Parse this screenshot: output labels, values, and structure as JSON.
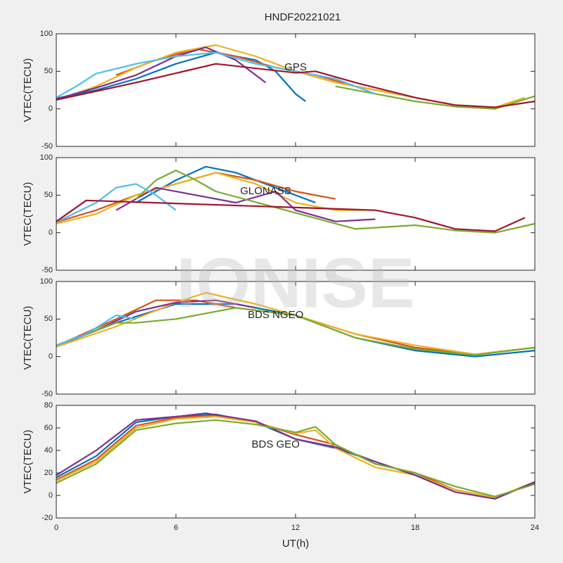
{
  "title": "HNDF20221021",
  "watermark": "IONISE",
  "xlabel": "UT(h)",
  "chart_data": [
    {
      "type": "line",
      "ylabel": "VTEC(TECU)",
      "annotation": "GPS",
      "annotation_x": 12,
      "annotation_y": 55,
      "xlim": [
        0,
        24
      ],
      "xticks": [
        0,
        6,
        12,
        18,
        24
      ],
      "ylim": [
        -50,
        100
      ],
      "yticks": [
        -50,
        0,
        50,
        100
      ],
      "series": [
        {
          "color": "#0072BD",
          "x": [
            0,
            2,
            4,
            6,
            8,
            10,
            11,
            12,
            12.5
          ],
          "values": [
            14,
            25,
            40,
            60,
            75,
            65,
            50,
            20,
            10
          ]
        },
        {
          "color": "#D95319",
          "x": [
            3,
            5,
            7,
            9,
            11,
            13,
            15,
            17
          ],
          "values": [
            45,
            65,
            80,
            70,
            55,
            45,
            30,
            20
          ]
        },
        {
          "color": "#EDB120",
          "x": [
            0,
            2,
            4,
            6,
            8,
            10,
            12,
            14,
            16,
            18,
            20,
            22,
            23.5
          ],
          "values": [
            12,
            30,
            55,
            75,
            85,
            70,
            50,
            35,
            25,
            15,
            5,
            2,
            15
          ]
        },
        {
          "color": "#7E2F8E",
          "x": [
            0,
            2,
            4,
            6,
            7.5,
            9,
            10.5
          ],
          "values": [
            13,
            28,
            45,
            70,
            82,
            65,
            35
          ]
        },
        {
          "color": "#77AC30",
          "x": [
            14,
            16,
            18,
            20,
            22,
            24
          ],
          "values": [
            30,
            20,
            10,
            3,
            0,
            17
          ]
        },
        {
          "color": "#4DBEEE",
          "x": [
            0,
            1,
            2,
            4,
            6,
            8,
            10,
            12,
            14,
            16
          ],
          "values": [
            15,
            30,
            47,
            60,
            70,
            75,
            60,
            50,
            40,
            20
          ]
        },
        {
          "color": "#A2142F",
          "x": [
            0,
            4,
            8,
            12,
            13,
            15,
            18,
            20,
            22,
            24
          ],
          "values": [
            12,
            35,
            60,
            48,
            50,
            35,
            15,
            5,
            2,
            10
          ]
        }
      ]
    },
    {
      "type": "line",
      "ylabel": "VTEC(TECU)",
      "annotation": "GLONASS",
      "annotation_x": 10.5,
      "annotation_y": 55,
      "xlim": [
        0,
        24
      ],
      "xticks": [
        0,
        6,
        12,
        18,
        24
      ],
      "ylim": [
        -50,
        100
      ],
      "yticks": [
        -50,
        0,
        50,
        100
      ],
      "series": [
        {
          "color": "#0072BD",
          "x": [
            4,
            6,
            7.5,
            9,
            11,
            13
          ],
          "values": [
            40,
            70,
            88,
            80,
            60,
            40
          ]
        },
        {
          "color": "#D95319",
          "x": [
            0,
            2,
            4,
            6,
            8,
            10,
            12,
            14
          ],
          "values": [
            14,
            30,
            50,
            65,
            80,
            70,
            55,
            45
          ]
        },
        {
          "color": "#EDB120",
          "x": [
            0,
            2,
            4,
            6,
            8,
            10,
            12,
            14,
            16
          ],
          "values": [
            12,
            25,
            50,
            65,
            80,
            65,
            40,
            30,
            30
          ]
        },
        {
          "color": "#7E2F8E",
          "x": [
            3,
            5,
            7,
            9,
            11,
            12,
            14,
            16
          ],
          "values": [
            30,
            60,
            50,
            40,
            55,
            30,
            15,
            18
          ]
        },
        {
          "color": "#77AC30",
          "x": [
            4,
            5,
            6,
            7,
            8,
            15,
            18,
            20,
            22,
            24
          ],
          "values": [
            45,
            70,
            83,
            70,
            55,
            5,
            10,
            3,
            0,
            12
          ]
        },
        {
          "color": "#4DBEEE",
          "x": [
            0,
            2,
            3,
            4,
            5,
            6
          ],
          "values": [
            14,
            40,
            60,
            65,
            50,
            30
          ]
        },
        {
          "color": "#A2142F",
          "x": [
            0,
            1.5,
            16,
            18,
            20,
            22,
            23.5
          ],
          "values": [
            15,
            43,
            30,
            20,
            5,
            2,
            20
          ]
        }
      ]
    },
    {
      "type": "line",
      "ylabel": "VTEC(TECU)",
      "annotation": "BDS NGEO",
      "annotation_x": 11,
      "annotation_y": 55,
      "xlim": [
        0,
        24
      ],
      "xticks": [
        0,
        6,
        12,
        18,
        24
      ],
      "ylim": [
        -50,
        100
      ],
      "yticks": [
        -50,
        0,
        50,
        100
      ],
      "series": [
        {
          "color": "#0072BD",
          "x": [
            0,
            3,
            6,
            9,
            12,
            15,
            18,
            21,
            24
          ],
          "values": [
            14,
            45,
            70,
            70,
            55,
            25,
            8,
            0,
            8
          ]
        },
        {
          "color": "#D95319",
          "x": [
            0,
            3,
            5,
            7,
            9,
            12,
            15,
            18,
            21,
            24
          ],
          "values": [
            14,
            50,
            75,
            75,
            65,
            55,
            30,
            12,
            3,
            12
          ]
        },
        {
          "color": "#EDB120",
          "x": [
            0,
            3,
            6,
            7.5,
            10,
            12,
            15,
            18,
            21,
            24
          ],
          "values": [
            13,
            40,
            72,
            85,
            70,
            55,
            30,
            15,
            3,
            12
          ]
        },
        {
          "color": "#7E2F8E",
          "x": [
            0,
            2,
            4,
            6,
            8,
            10
          ],
          "values": [
            15,
            35,
            60,
            72,
            75,
            65
          ]
        },
        {
          "color": "#77AC30",
          "x": [
            0,
            3,
            4,
            6,
            9,
            12,
            15,
            18,
            21,
            24
          ],
          "values": [
            15,
            45,
            45,
            50,
            65,
            55,
            25,
            10,
            2,
            12
          ]
        },
        {
          "color": "#4DBEEE",
          "x": [
            0,
            1.5,
            3,
            4
          ],
          "values": [
            15,
            30,
            55,
            50
          ]
        }
      ]
    },
    {
      "type": "line",
      "ylabel": "VTEC(TECU)",
      "annotation": "BDS GEO",
      "annotation_x": 11,
      "annotation_y": 45,
      "xlim": [
        0,
        24
      ],
      "xticks": [
        0,
        6,
        12,
        18,
        24
      ],
      "ylim": [
        -20,
        80
      ],
      "yticks": [
        -20,
        0,
        20,
        40,
        60,
        80
      ],
      "series": [
        {
          "color": "#0072BD",
          "x": [
            0,
            2,
            4,
            6,
            8,
            10,
            12,
            14,
            16,
            18,
            20,
            22,
            24
          ],
          "values": [
            16,
            35,
            65,
            70,
            72,
            65,
            50,
            42,
            30,
            18,
            5,
            -2,
            11
          ]
        },
        {
          "color": "#D95319",
          "x": [
            0,
            2,
            4,
            6,
            8,
            10,
            12,
            14,
            16,
            18,
            20,
            22,
            24
          ],
          "values": [
            14,
            32,
            62,
            69,
            71,
            65,
            54,
            45,
            28,
            20,
            5,
            -2,
            11
          ]
        },
        {
          "color": "#EDB120",
          "x": [
            0,
            2,
            4,
            6,
            8,
            10,
            12,
            13,
            14,
            16,
            18,
            20,
            22,
            24
          ],
          "values": [
            13,
            30,
            60,
            68,
            70,
            65,
            55,
            58,
            42,
            25,
            18,
            5,
            -2,
            12
          ]
        },
        {
          "color": "#7E2F8E",
          "x": [
            0,
            2,
            4,
            6,
            7.5,
            10,
            12,
            14,
            16,
            18,
            20,
            22,
            24
          ],
          "values": [
            18,
            40,
            67,
            70,
            73,
            66,
            50,
            43,
            30,
            18,
            3,
            -3,
            12
          ]
        },
        {
          "color": "#77AC30",
          "x": [
            0,
            2,
            4,
            6,
            8,
            10,
            12,
            13,
            14,
            16,
            18,
            20,
            22,
            24
          ],
          "values": [
            11,
            28,
            58,
            64,
            67,
            63,
            56,
            61,
            45,
            28,
            20,
            8,
            -1,
            10
          ]
        }
      ]
    }
  ]
}
